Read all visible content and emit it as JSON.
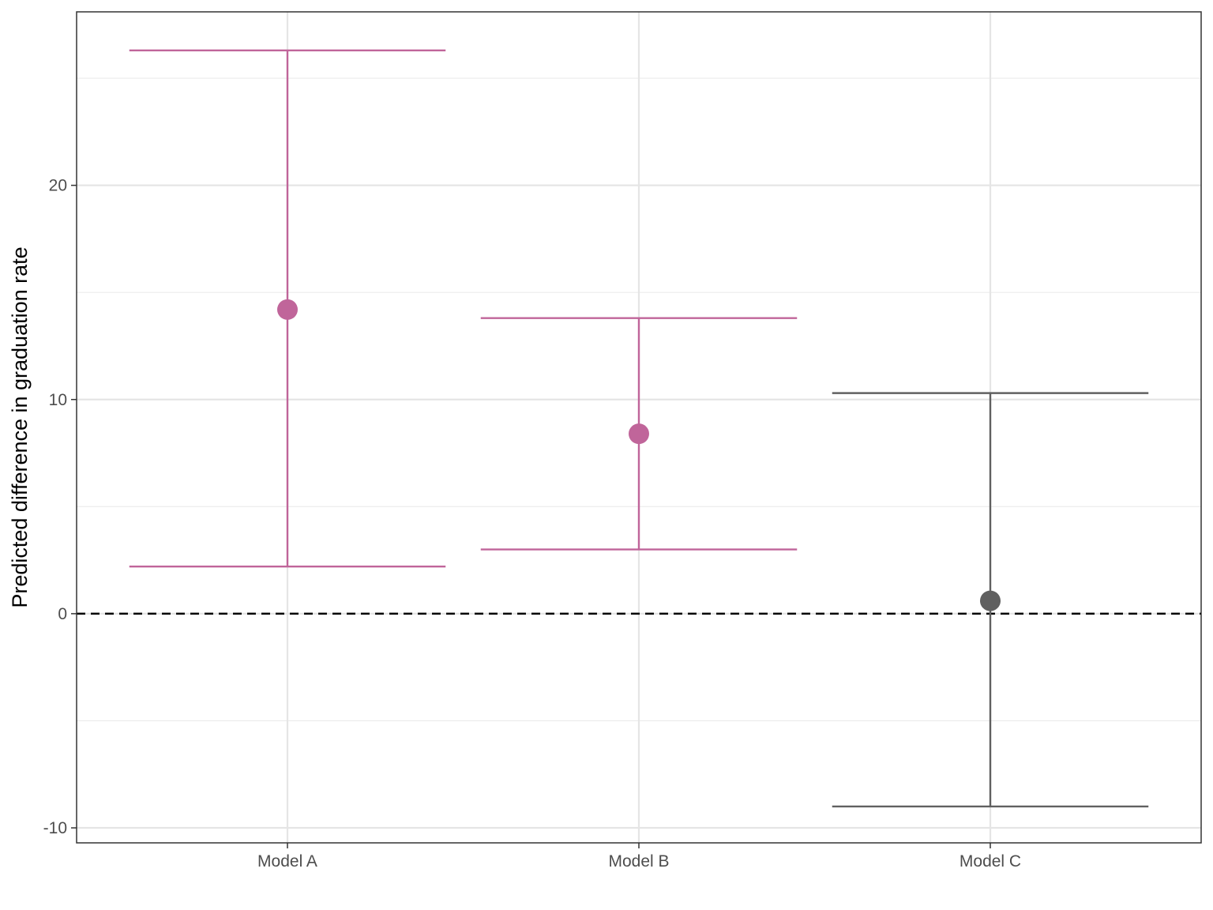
{
  "chart_data": {
    "type": "errorbar",
    "title": "",
    "xlabel": "",
    "ylabel": "Predicted difference in graduation rate",
    "categories": [
      "Model A",
      "Model B",
      "Model C"
    ],
    "estimates": [
      14.2,
      8.4,
      0.6
    ],
    "lower": [
      2.2,
      3.0,
      -9.0
    ],
    "upper": [
      26.3,
      13.8,
      10.3
    ],
    "ylim": [
      -10.7,
      28.1
    ],
    "yticks": [
      -10,
      0,
      10,
      20
    ],
    "ytick_labels": [
      "-10",
      "0",
      "10",
      "20"
    ],
    "reference_line": {
      "y": 0,
      "style": "dashed",
      "color": "#000000"
    },
    "grid": true,
    "legend": "none",
    "colors": {
      "significant": "#c0659a",
      "not_significant": "#606060",
      "per_category": [
        "#c0659a",
        "#c0659a",
        "#606060"
      ]
    }
  }
}
